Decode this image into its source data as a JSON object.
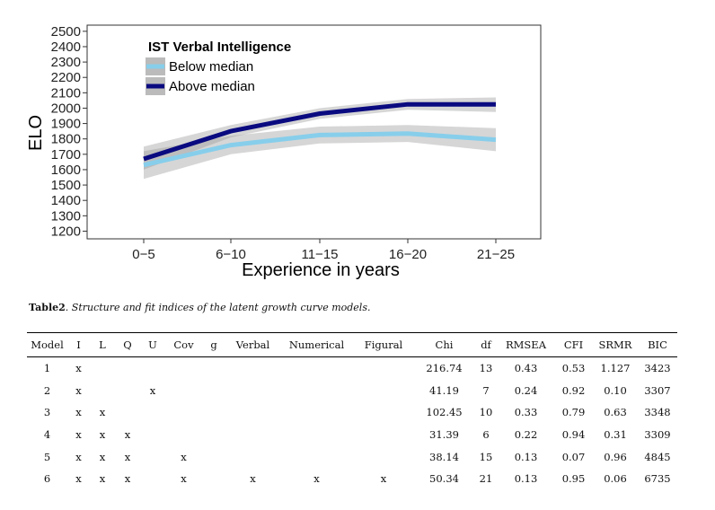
{
  "chart_data": {
    "type": "line",
    "xlabel": "Experience in years",
    "ylabel": "ELO",
    "categories": [
      "0−5",
      "6−10",
      "11−15",
      "16−20",
      "21−25"
    ],
    "yticks": [
      1200,
      1300,
      1400,
      1500,
      1600,
      1700,
      1800,
      1900,
      2000,
      2100,
      2200,
      2300,
      2400,
      2500
    ],
    "ylim": [
      1150,
      2540
    ],
    "grid": false,
    "legend_position": "top-left",
    "legend_title": "IST Verbal Intelligence",
    "series": [
      {
        "name": "Below median",
        "color": "#87ceeb",
        "values": [
          1630,
          1760,
          1825,
          1835,
          1795
        ],
        "ci_low": [
          1540,
          1700,
          1770,
          1780,
          1720
        ],
        "ci_high": [
          1720,
          1820,
          1880,
          1890,
          1870
        ]
      },
      {
        "name": "Above median",
        "color": "#0a0a80",
        "values": [
          1670,
          1850,
          1965,
          2025,
          2025
        ],
        "ci_low": [
          1600,
          1810,
          1930,
          1990,
          1975
        ],
        "ci_high": [
          1750,
          1890,
          2000,
          2060,
          2070
        ]
      }
    ]
  },
  "table": {
    "label": "Table2",
    "caption": ". Structure and fit indices of the latent growth curve models.",
    "headers": [
      "Model",
      "I",
      "L",
      "Q",
      "U",
      "Cov",
      "g",
      "Verbal",
      "Numerical",
      "Figural",
      "Chi",
      "df",
      "RMSEA",
      "CFI",
      "SRMR",
      "BIC"
    ],
    "rows": [
      [
        "1",
        "x",
        "",
        "",
        "",
        "",
        "",
        "",
        "",
        "",
        "216.74",
        "13",
        "0.43",
        "0.53",
        "1.127",
        "3423"
      ],
      [
        "2",
        "x",
        "",
        "",
        "x",
        "",
        "",
        "",
        "",
        "",
        "41.19",
        "7",
        "0.24",
        "0.92",
        "0.10",
        "3307"
      ],
      [
        "3",
        "x",
        "x",
        "",
        "",
        "",
        "",
        "",
        "",
        "",
        "102.45",
        "10",
        "0.33",
        "0.79",
        "0.63",
        "3348"
      ],
      [
        "4",
        "x",
        "x",
        "x",
        "",
        "",
        "",
        "",
        "",
        "",
        "31.39",
        "6",
        "0.22",
        "0.94",
        "0.31",
        "3309"
      ],
      [
        "5",
        "x",
        "x",
        "x",
        "",
        "x",
        "",
        "",
        "",
        "",
        "38.14",
        "15",
        "0.13",
        "0.07",
        "0.96",
        "4845"
      ],
      [
        "6",
        "x",
        "x",
        "x",
        "",
        "x",
        "",
        "x",
        "x",
        "x",
        "50.34",
        "21",
        "0.13",
        "0.95",
        "0.06",
        "6735"
      ]
    ]
  }
}
